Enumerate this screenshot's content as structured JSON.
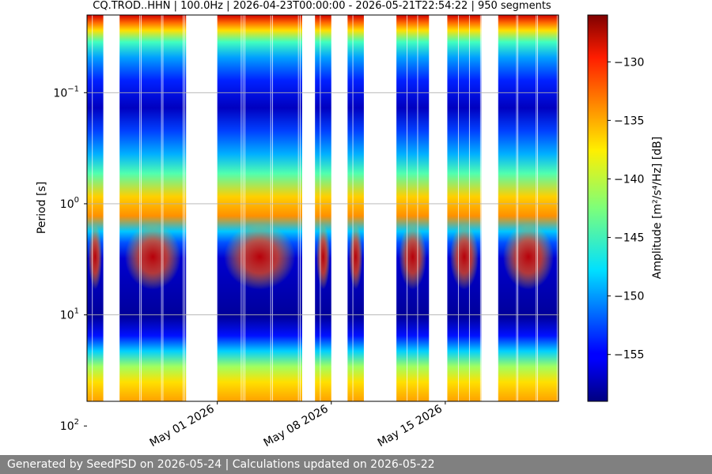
{
  "chart_data": {
    "type": "heatmap",
    "title": "CQ.TROD..HHN | 100.0Hz | 2026-04-23T00:00:00 - 2026-05-21T22:54:22 | 950 segments",
    "ylabel": "Period [s]",
    "y_scale": "log",
    "y_inverted": true,
    "ylim": [
      0.02,
      60
    ],
    "y_ticks": [
      {
        "value": 0.1,
        "base": "10",
        "exp": "−1"
      },
      {
        "value": 1,
        "base": "10",
        "exp": "0"
      },
      {
        "value": 10,
        "base": "10",
        "exp": "1"
      },
      {
        "value": 100,
        "base": "10",
        "exp": "2"
      }
    ],
    "xlim": [
      "2026-04-23T00:00:00",
      "2026-05-21T22:54:22"
    ],
    "x_ticks": [
      {
        "value": "2026-05-01",
        "label": "May 01 2026"
      },
      {
        "value": "2026-05-08",
        "label": "May 08 2026"
      },
      {
        "value": "2026-05-15",
        "label": "May 15 2026"
      }
    ],
    "data_intervals": [
      [
        "2026-04-23T00:00",
        "2026-04-24T00:00"
      ],
      [
        "2026-04-25T00:00",
        "2026-04-29T02:00"
      ],
      [
        "2026-05-01T00:00",
        "2026-05-06T05:00"
      ],
      [
        "2026-05-07T00:00",
        "2026-05-08T00:00"
      ],
      [
        "2026-05-09T00:00",
        "2026-05-10T00:00"
      ],
      [
        "2026-05-12T00:00",
        "2026-05-14T00:00"
      ],
      [
        "2026-05-15T03:00",
        "2026-05-17T05:00"
      ],
      [
        "2026-05-18T06:00",
        "2026-05-21T22:54"
      ]
    ],
    "colorbar": {
      "label_text": "Amplitude",
      "label_units": "[m²/s⁴/Hz] [dB]",
      "range": [
        -159,
        -126
      ],
      "ticks": [
        {
          "value": -130,
          "label": "−130"
        },
        {
          "value": -135,
          "label": "−135"
        },
        {
          "value": -140,
          "label": "−140"
        },
        {
          "value": -145,
          "label": "−145"
        },
        {
          "value": -150,
          "label": "−150"
        },
        {
          "value": -155,
          "label": "−155"
        }
      ],
      "colormap": "jet"
    },
    "grid": true
  },
  "footer": {
    "text": "Generated by SeedPSD on 2026-05-24 | Calculations updated on 2026-05-22"
  }
}
